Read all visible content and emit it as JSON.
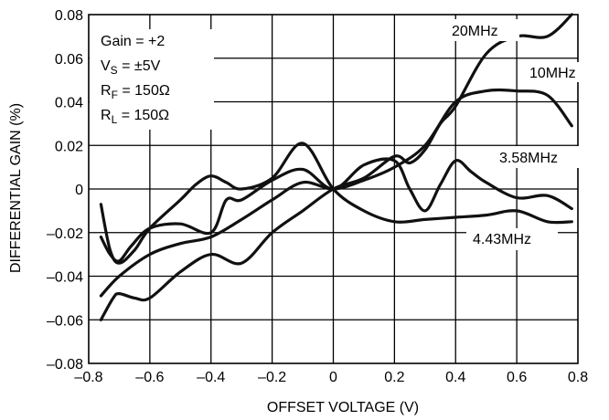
{
  "chart_data": {
    "type": "line",
    "xlabel": "OFFSET VOLTAGE (V)",
    "ylabel": "DIFFERENTIAL GAIN (%)",
    "xlim": [
      -0.8,
      0.8
    ],
    "ylim": [
      -0.08,
      0.08
    ],
    "x_ticks": [
      "–0.8",
      "–0.6",
      "–0.4",
      "–0.2",
      "0",
      "0.2",
      "0.4",
      "0.6",
      "0.8"
    ],
    "y_ticks": [
      "0.08",
      "0.06",
      "0.04",
      "0.02",
      "0",
      "–0.02",
      "–0.04",
      "–0.06",
      "–0.08"
    ],
    "grid": true,
    "conditions": {
      "gain": "Gain = +2",
      "vs_main": "V",
      "vs_sub": "S",
      "vs_rest": " = ±5V",
      "rf_main": "R",
      "rf_sub": "F",
      "rf_rest": " = 150Ω",
      "rl_main": "R",
      "rl_sub": "L",
      "rl_rest": " = 150Ω"
    },
    "series": [
      {
        "name": "20MHz",
        "x": [
          -0.76,
          -0.72,
          -0.7,
          -0.65,
          -0.6,
          -0.5,
          -0.4,
          -0.3,
          -0.2,
          -0.1,
          0,
          0.1,
          0.2,
          0.25,
          0.3,
          0.35,
          0.4,
          0.5,
          0.6,
          0.7,
          0.78
        ],
        "y": [
          -0.06,
          -0.05,
          -0.048,
          -0.05,
          -0.05,
          -0.038,
          -0.03,
          -0.034,
          -0.02,
          -0.01,
          0,
          0.005,
          0.015,
          0.012,
          0.018,
          0.03,
          0.038,
          0.062,
          0.07,
          0.07,
          0.08
        ]
      },
      {
        "name": "10MHz",
        "x": [
          -0.76,
          -0.7,
          -0.6,
          -0.5,
          -0.4,
          -0.3,
          -0.2,
          -0.1,
          0,
          0.1,
          0.2,
          0.3,
          0.4,
          0.5,
          0.6,
          0.7,
          0.78
        ],
        "y": [
          -0.049,
          -0.04,
          -0.03,
          -0.025,
          -0.022,
          -0.014,
          -0.005,
          0.003,
          0,
          0.004,
          0.01,
          0.02,
          0.04,
          0.045,
          0.045,
          0.043,
          0.029
        ]
      },
      {
        "name": "3.58MHz",
        "x": [
          -0.76,
          -0.73,
          -0.7,
          -0.66,
          -0.6,
          -0.5,
          -0.4,
          -0.35,
          -0.3,
          -0.2,
          -0.1,
          0,
          0.1,
          0.2,
          0.25,
          0.3,
          0.35,
          0.4,
          0.45,
          0.5,
          0.6,
          0.7,
          0.78
        ],
        "y": [
          -0.022,
          -0.03,
          -0.033,
          -0.026,
          -0.018,
          -0.016,
          -0.02,
          -0.005,
          -0.005,
          0.004,
          0.009,
          0,
          0.011,
          0.013,
          0,
          -0.01,
          0.002,
          0.013,
          0.008,
          0.003,
          -0.004,
          -0.003,
          -0.009
        ]
      },
      {
        "name": "4.43MHz",
        "x": [
          -0.76,
          -0.73,
          -0.7,
          -0.65,
          -0.6,
          -0.5,
          -0.45,
          -0.4,
          -0.35,
          -0.3,
          -0.2,
          -0.1,
          0,
          0.1,
          0.2,
          0.3,
          0.4,
          0.5,
          0.6,
          0.7,
          0.78
        ],
        "y": [
          -0.007,
          -0.028,
          -0.034,
          -0.028,
          -0.018,
          -0.005,
          0.002,
          0.006,
          0.003,
          0,
          0.005,
          0.021,
          0,
          -0.01,
          -0.015,
          -0.014,
          -0.013,
          -0.012,
          -0.01,
          -0.015,
          -0.015
        ]
      }
    ]
  }
}
